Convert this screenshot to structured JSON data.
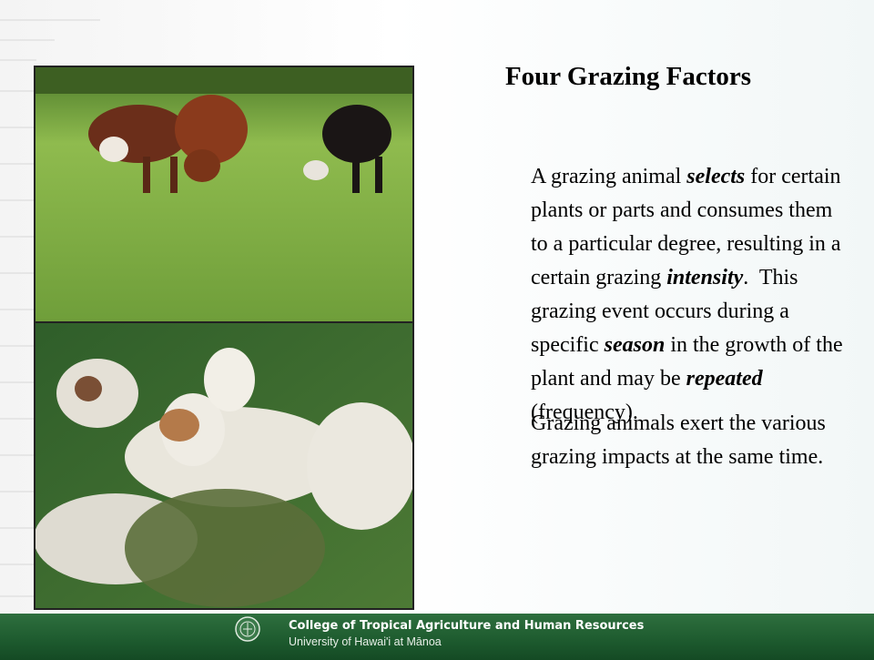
{
  "slide": {
    "title": "Four Grazing Factors",
    "paragraphs": [
      {
        "runs": [
          {
            "text": "A grazing animal "
          },
          {
            "text": "selects",
            "emphasis": true
          },
          {
            "text": " for certain plants or parts and consumes them to a particular degree, resulting in a certain grazing "
          },
          {
            "text": "intensity",
            "emphasis": true
          },
          {
            "text": ".  This grazing event occurs during a specific "
          },
          {
            "text": "season",
            "emphasis": true
          },
          {
            "text": " in the growth of the plant and may be "
          },
          {
            "text": "repeated",
            "emphasis": true
          },
          {
            "text": " (frequency)."
          }
        ]
      },
      {
        "runs": [
          {
            "text": "Grazing animals exert the various grazing impacts at the same time."
          }
        ]
      }
    ],
    "footer": {
      "college": "College of Tropical Agriculture and Human Resources",
      "university": "University of Hawai'i at Mānoa"
    }
  }
}
